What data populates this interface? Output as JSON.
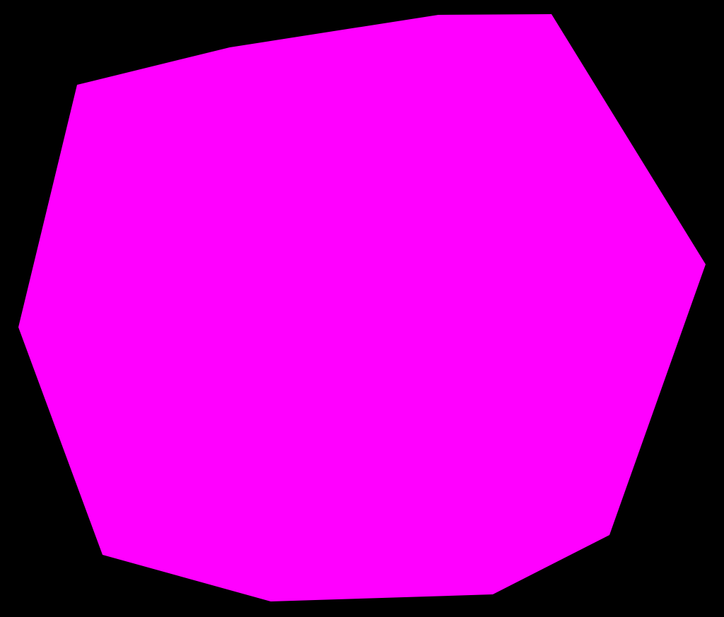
{
  "scene": {
    "background_color": "#000000",
    "shape": {
      "kind": "irregular-polygon",
      "fill_color": "#ff00ff",
      "vertex_count": 12
    }
  }
}
